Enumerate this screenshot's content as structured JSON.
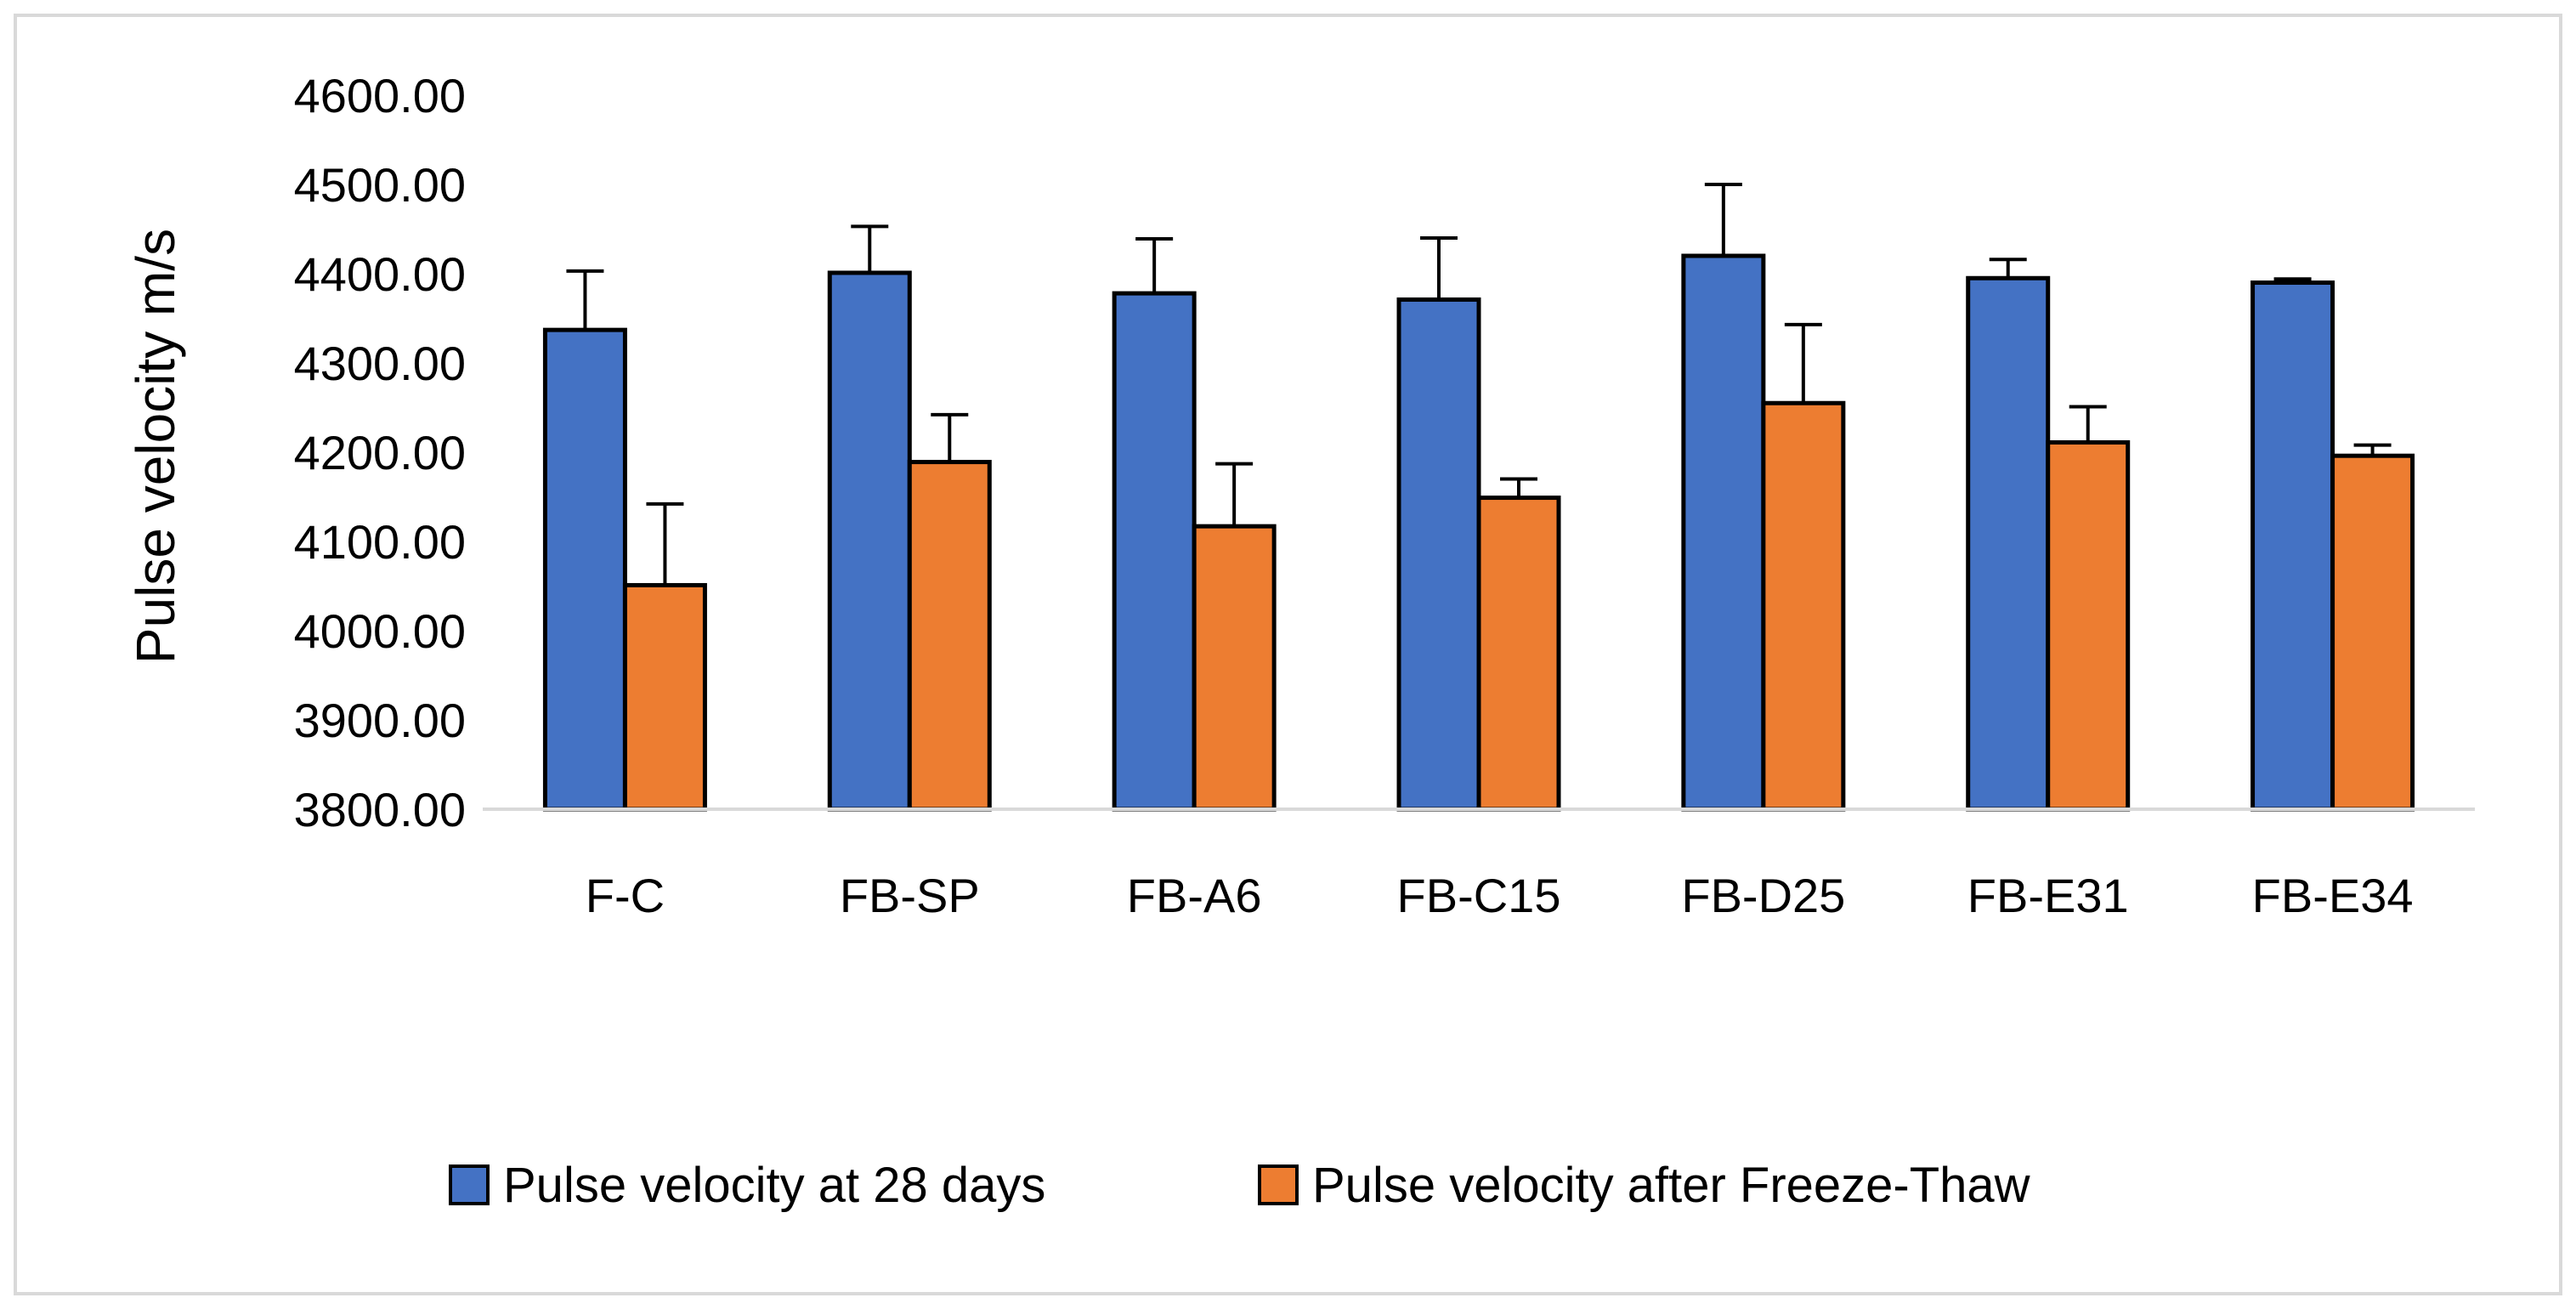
{
  "chart_data": {
    "type": "bar",
    "title": "",
    "xlabel": "",
    "ylabel": "Pulse velocity m/s",
    "ylim": [
      3800,
      4600
    ],
    "yticks": [
      "3800.00",
      "3900.00",
      "4000.00",
      "4100.00",
      "4200.00",
      "4300.00",
      "4400.00",
      "4500.00",
      "4600.00"
    ],
    "grid": false,
    "legend_position": "bottom",
    "categories": [
      "F-C",
      "FB-SP",
      "FB-A6",
      "FB-C15",
      "FB-D25",
      "FB-E31",
      "FB-E34"
    ],
    "series": [
      {
        "name": "Pulse velocity at 28 days",
        "color": "#4472C4",
        "values": [
          4337,
          4401,
          4378,
          4371,
          4420,
          4395,
          4390
        ],
        "errors": [
          66,
          52,
          61,
          69,
          80,
          21,
          4
        ]
      },
      {
        "name": "Pulse velocity after Freeze-Thaw",
        "color": "#ED7D31",
        "values": [
          4051,
          4189,
          4117,
          4149,
          4255,
          4211,
          4196
        ],
        "errors": [
          91,
          53,
          70,
          21,
          88,
          40,
          12
        ]
      }
    ]
  }
}
